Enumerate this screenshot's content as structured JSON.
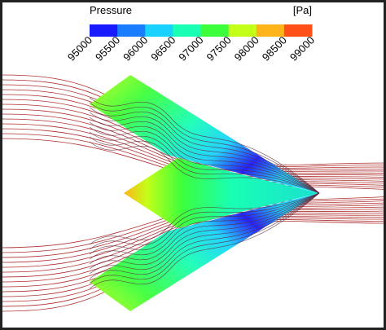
{
  "colorbar": {
    "title": "Pressure",
    "unit": "[Pa]",
    "ticks": [
      95000,
      95500,
      96000,
      96500,
      97000,
      97500,
      98000,
      98500,
      99000
    ],
    "colors": [
      "#1a1aff",
      "#1a7cff",
      "#19d2ff",
      "#19ffb4",
      "#3cff3c",
      "#c3ff19",
      "#ffb419",
      "#ff5019"
    ]
  }
}
